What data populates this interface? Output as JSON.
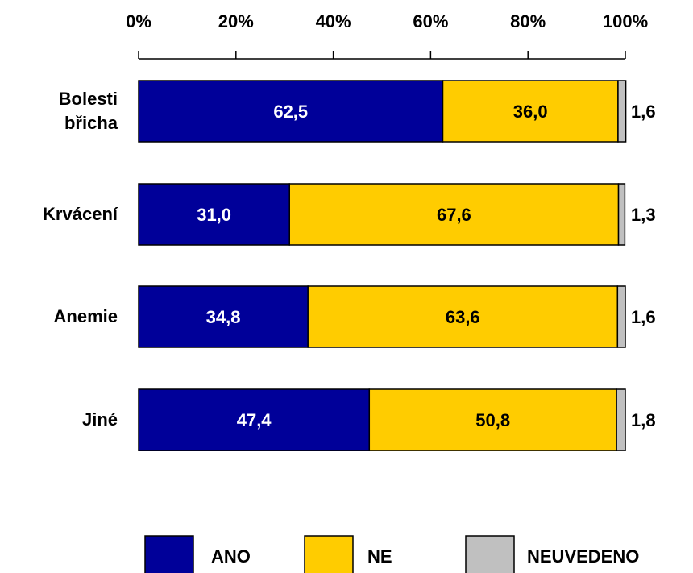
{
  "chart_data": {
    "type": "stacked_bar_horizontal",
    "categories": [
      "Bolesti břicha",
      "Krvácení",
      "Anemie",
      "Jiné"
    ],
    "series": [
      {
        "name": "ANO",
        "color": "#000099",
        "values": [
          62.5,
          31.0,
          34.8,
          47.4
        ],
        "value_labels": [
          "62,5",
          "31,0",
          "34,8",
          "47,4"
        ]
      },
      {
        "name": "NE",
        "color": "#ffcc00",
        "values": [
          36.0,
          67.6,
          63.6,
          50.8
        ],
        "value_labels": [
          "36,0",
          "67,6",
          "63,6",
          "50,8"
        ]
      },
      {
        "name": "NEUVEDENO",
        "color": "#c0c0c0",
        "values": [
          1.6,
          1.3,
          1.6,
          1.8
        ],
        "value_labels": [
          "1,6",
          "1,3",
          "1,6",
          "1,8"
        ]
      }
    ],
    "xlim": [
      0,
      100
    ],
    "xticks": [
      {
        "value": 0,
        "label": "0%"
      },
      {
        "value": 20,
        "label": "20%"
      },
      {
        "value": 40,
        "label": "40%"
      },
      {
        "value": 60,
        "label": "60%"
      },
      {
        "value": 80,
        "label": "80%"
      },
      {
        "value": 100,
        "label": "100%"
      }
    ],
    "legend": "bottom"
  }
}
